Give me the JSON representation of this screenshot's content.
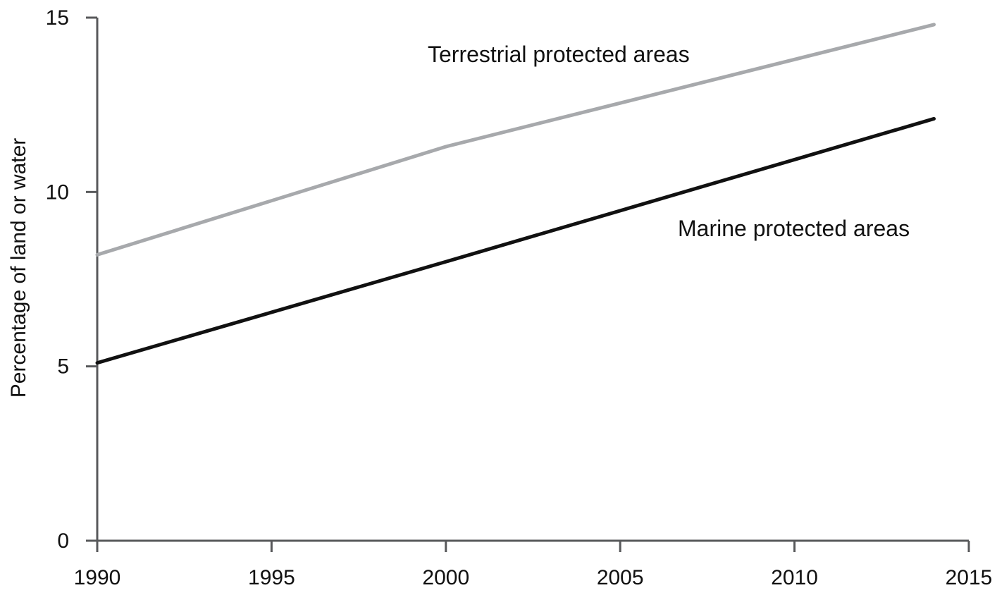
{
  "chart_data": {
    "type": "line",
    "title": "",
    "xlabel": "",
    "ylabel": "Percentage of land or water",
    "xlim": [
      1990,
      2015
    ],
    "ylim": [
      0,
      15
    ],
    "x_ticks": [
      "1990",
      "1995",
      "2000",
      "2005",
      "2010",
      "2015"
    ],
    "y_ticks": [
      "0",
      "5",
      "10",
      "15"
    ],
    "grid": false,
    "legend": "none",
    "series": [
      {
        "name": "Terrestrial protected areas",
        "color": "#a7a9ac",
        "x": [
          1990,
          2000,
          2014
        ],
        "y": [
          8.2,
          11.3,
          14.8
        ]
      },
      {
        "name": "Marine protected areas",
        "color": "#111111",
        "x": [
          1990,
          2000,
          2014
        ],
        "y": [
          5.1,
          8.0,
          12.1
        ]
      }
    ]
  }
}
